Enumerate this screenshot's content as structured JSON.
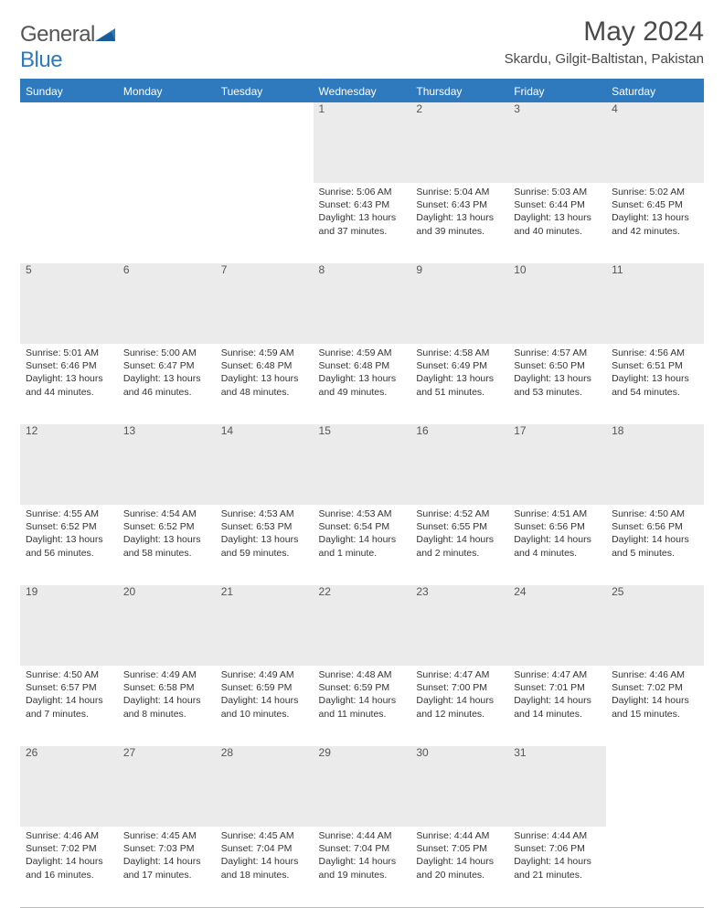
{
  "logo": {
    "word1": "General",
    "word2": "Blue"
  },
  "header": {
    "title": "May 2024",
    "location": "Skardu, Gilgit-Baltistan, Pakistan"
  },
  "styling": {
    "header_bg": "#2f7abf",
    "header_text": "#ffffff",
    "daynum_bg": "#ebebeb",
    "daynum_text": "#555555",
    "body_text": "#333333",
    "page_bg": "#ffffff",
    "title_fontsize": 30,
    "location_fontsize": 15,
    "dayheader_fontsize": 12,
    "cell_fontsize": 10.5,
    "columns": 7,
    "rows": 5,
    "border_top": "2px solid #2f7abf"
  },
  "day_headers": [
    "Sunday",
    "Monday",
    "Tuesday",
    "Wednesday",
    "Thursday",
    "Friday",
    "Saturday"
  ],
  "weeks": [
    [
      null,
      null,
      null,
      {
        "n": "1",
        "sr": "5:06 AM",
        "ss": "6:43 PM",
        "dl": "13 hours and 37 minutes."
      },
      {
        "n": "2",
        "sr": "5:04 AM",
        "ss": "6:43 PM",
        "dl": "13 hours and 39 minutes."
      },
      {
        "n": "3",
        "sr": "5:03 AM",
        "ss": "6:44 PM",
        "dl": "13 hours and 40 minutes."
      },
      {
        "n": "4",
        "sr": "5:02 AM",
        "ss": "6:45 PM",
        "dl": "13 hours and 42 minutes."
      }
    ],
    [
      {
        "n": "5",
        "sr": "5:01 AM",
        "ss": "6:46 PM",
        "dl": "13 hours and 44 minutes."
      },
      {
        "n": "6",
        "sr": "5:00 AM",
        "ss": "6:47 PM",
        "dl": "13 hours and 46 minutes."
      },
      {
        "n": "7",
        "sr": "4:59 AM",
        "ss": "6:48 PM",
        "dl": "13 hours and 48 minutes."
      },
      {
        "n": "8",
        "sr": "4:59 AM",
        "ss": "6:48 PM",
        "dl": "13 hours and 49 minutes."
      },
      {
        "n": "9",
        "sr": "4:58 AM",
        "ss": "6:49 PM",
        "dl": "13 hours and 51 minutes."
      },
      {
        "n": "10",
        "sr": "4:57 AM",
        "ss": "6:50 PM",
        "dl": "13 hours and 53 minutes."
      },
      {
        "n": "11",
        "sr": "4:56 AM",
        "ss": "6:51 PM",
        "dl": "13 hours and 54 minutes."
      }
    ],
    [
      {
        "n": "12",
        "sr": "4:55 AM",
        "ss": "6:52 PM",
        "dl": "13 hours and 56 minutes."
      },
      {
        "n": "13",
        "sr": "4:54 AM",
        "ss": "6:52 PM",
        "dl": "13 hours and 58 minutes."
      },
      {
        "n": "14",
        "sr": "4:53 AM",
        "ss": "6:53 PM",
        "dl": "13 hours and 59 minutes."
      },
      {
        "n": "15",
        "sr": "4:53 AM",
        "ss": "6:54 PM",
        "dl": "14 hours and 1 minute."
      },
      {
        "n": "16",
        "sr": "4:52 AM",
        "ss": "6:55 PM",
        "dl": "14 hours and 2 minutes."
      },
      {
        "n": "17",
        "sr": "4:51 AM",
        "ss": "6:56 PM",
        "dl": "14 hours and 4 minutes."
      },
      {
        "n": "18",
        "sr": "4:50 AM",
        "ss": "6:56 PM",
        "dl": "14 hours and 5 minutes."
      }
    ],
    [
      {
        "n": "19",
        "sr": "4:50 AM",
        "ss": "6:57 PM",
        "dl": "14 hours and 7 minutes."
      },
      {
        "n": "20",
        "sr": "4:49 AM",
        "ss": "6:58 PM",
        "dl": "14 hours and 8 minutes."
      },
      {
        "n": "21",
        "sr": "4:49 AM",
        "ss": "6:59 PM",
        "dl": "14 hours and 10 minutes."
      },
      {
        "n": "22",
        "sr": "4:48 AM",
        "ss": "6:59 PM",
        "dl": "14 hours and 11 minutes."
      },
      {
        "n": "23",
        "sr": "4:47 AM",
        "ss": "7:00 PM",
        "dl": "14 hours and 12 minutes."
      },
      {
        "n": "24",
        "sr": "4:47 AM",
        "ss": "7:01 PM",
        "dl": "14 hours and 14 minutes."
      },
      {
        "n": "25",
        "sr": "4:46 AM",
        "ss": "7:02 PM",
        "dl": "14 hours and 15 minutes."
      }
    ],
    [
      {
        "n": "26",
        "sr": "4:46 AM",
        "ss": "7:02 PM",
        "dl": "14 hours and 16 minutes."
      },
      {
        "n": "27",
        "sr": "4:45 AM",
        "ss": "7:03 PM",
        "dl": "14 hours and 17 minutes."
      },
      {
        "n": "28",
        "sr": "4:45 AM",
        "ss": "7:04 PM",
        "dl": "14 hours and 18 minutes."
      },
      {
        "n": "29",
        "sr": "4:44 AM",
        "ss": "7:04 PM",
        "dl": "14 hours and 19 minutes."
      },
      {
        "n": "30",
        "sr": "4:44 AM",
        "ss": "7:05 PM",
        "dl": "14 hours and 20 minutes."
      },
      {
        "n": "31",
        "sr": "4:44 AM",
        "ss": "7:06 PM",
        "dl": "14 hours and 21 minutes."
      },
      null
    ]
  ],
  "labels": {
    "sunrise": "Sunrise:",
    "sunset": "Sunset:",
    "daylight": "Daylight:"
  }
}
